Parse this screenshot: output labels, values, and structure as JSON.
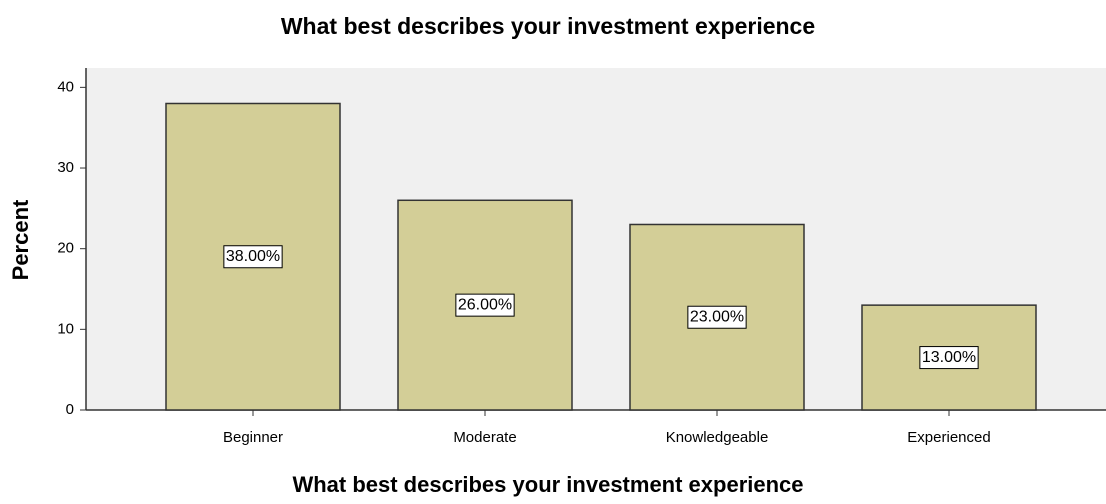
{
  "chart_data": {
    "type": "bar",
    "title": "What best describes your investment experience",
    "x_label": "What best describes your investment experience",
    "y_label": "Percent",
    "categories": [
      "Beginner",
      "Moderate",
      "Knowledgeable",
      "Experienced"
    ],
    "values": [
      38,
      26,
      23,
      13
    ],
    "value_labels": [
      "38.00%",
      "26.00%",
      "23.00%",
      "13.00%"
    ],
    "color": "#d3ce97",
    "ylim": [
      0,
      42.4
    ],
    "yticks": [
      0,
      10,
      20,
      30,
      40
    ],
    "grid": false
  }
}
